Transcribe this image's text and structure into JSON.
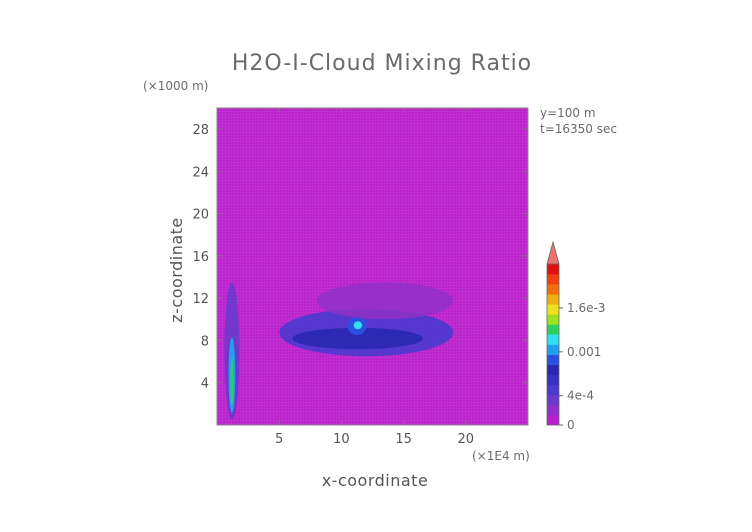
{
  "chart_data": {
    "type": "heatmap",
    "title": "H2O-I-Cloud Mixing Ratio",
    "xlabel": "x-coordinate",
    "ylabel": "z-coordinate",
    "x_unit": "(×1E4 m)",
    "y_unit": "(×1000 m)",
    "annotation_y": "y=100 m",
    "annotation_t": "t=16350 sec",
    "xlim": [
      0,
      25
    ],
    "ylim": [
      0,
      30
    ],
    "xticks": [
      5,
      10,
      15,
      20
    ],
    "yticks": [
      4,
      8,
      12,
      16,
      20,
      24,
      28
    ],
    "colorbar": {
      "range": [
        0,
        0.0022
      ],
      "labels": [
        {
          "value": 0,
          "text": "0"
        },
        {
          "value": 0.0004,
          "text": "4e-4"
        },
        {
          "value": 0.001,
          "text": "0.001"
        },
        {
          "value": 0.0016,
          "text": "1.6e-3"
        }
      ],
      "colors": [
        "#bb22cc",
        "#9030c8",
        "#6a3acc",
        "#4a3ad0",
        "#3a30c0",
        "#2a28b0",
        "#2a50e0",
        "#20a0f0",
        "#30e0f0",
        "#30d060",
        "#a0e020",
        "#f0e020",
        "#f0b010",
        "#f07010",
        "#f04010",
        "#e01010"
      ],
      "extend_color": "#f07070"
    },
    "background_color": "#bb22cc",
    "regions": [
      {
        "name": "left-column",
        "x": [
          0.6,
          1.8
        ],
        "z": [
          0.5,
          13.5
        ],
        "level": 4
      },
      {
        "name": "main-cloud-band",
        "x": [
          5,
          19
        ],
        "z": [
          6.5,
          11
        ],
        "level": 3
      },
      {
        "name": "upper-anvil",
        "x": [
          8,
          19
        ],
        "z": [
          10,
          13.5
        ],
        "level": 1
      },
      {
        "name": "core",
        "x": [
          10.5,
          12
        ],
        "z": [
          8.5,
          10.2
        ],
        "level": 8
      }
    ]
  }
}
